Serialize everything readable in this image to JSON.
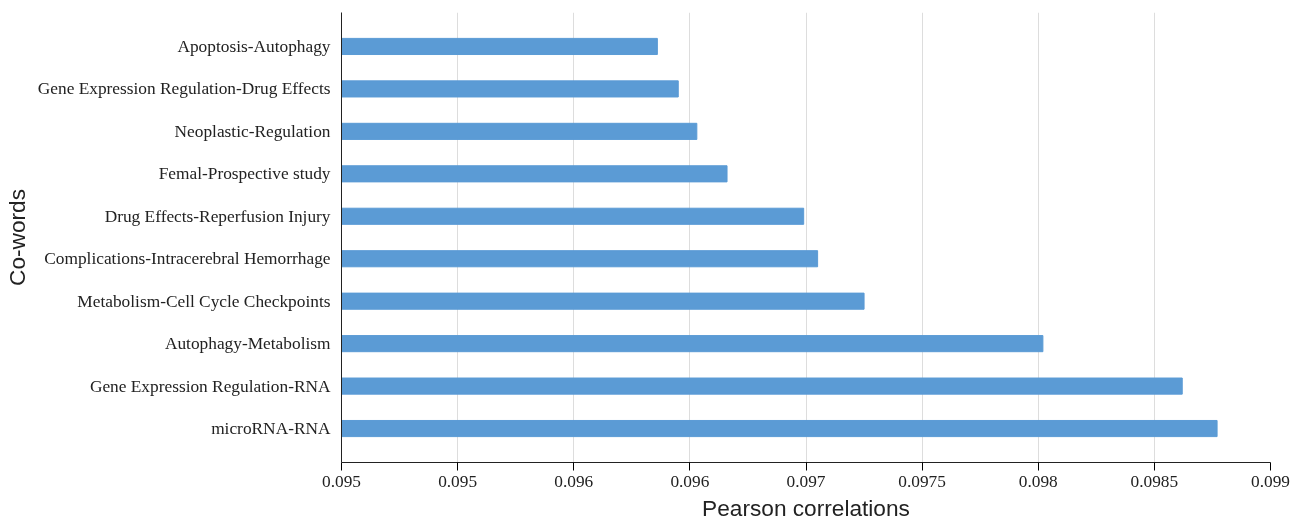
{
  "chart_data": {
    "type": "bar",
    "orientation": "horizontal",
    "xlabel": "Pearson correlations",
    "ylabel": "Co-words",
    "categories": [
      "Apoptosis-Autophagy",
      "Gene Expression Regulation-Drug Effects",
      "Neoplastic-Regulation",
      "Femal-Prospective study",
      "Drug Effects-Reperfusion Injury",
      "Complications-Intracerebral Hemorrhage",
      "Metabolism-Cell Cycle Checkpoints",
      "Autophagy-Metabolism",
      "Gene Expression Regulation-RNA",
      "microRNA-RNA"
    ],
    "values": [
      0.09636,
      0.09645,
      0.09653,
      0.09666,
      0.09699,
      0.09705,
      0.09725,
      0.09802,
      0.09862,
      0.09877
    ],
    "color": "#5b9bd5",
    "xlim": [
      0.095,
      0.099
    ],
    "xticks": [
      {
        "value": 0.095,
        "label": "0.095"
      },
      {
        "value": 0.0955,
        "label": "0.095"
      },
      {
        "value": 0.096,
        "label": "0.096"
      },
      {
        "value": 0.0965,
        "label": "0.096"
      },
      {
        "value": 0.097,
        "label": "0.097"
      },
      {
        "value": 0.0975,
        "label": "0.0975"
      },
      {
        "value": 0.098,
        "label": "0.098"
      },
      {
        "value": 0.0985,
        "label": "0.0985"
      },
      {
        "value": 0.099,
        "label": "0.099"
      }
    ],
    "grid": "x"
  }
}
